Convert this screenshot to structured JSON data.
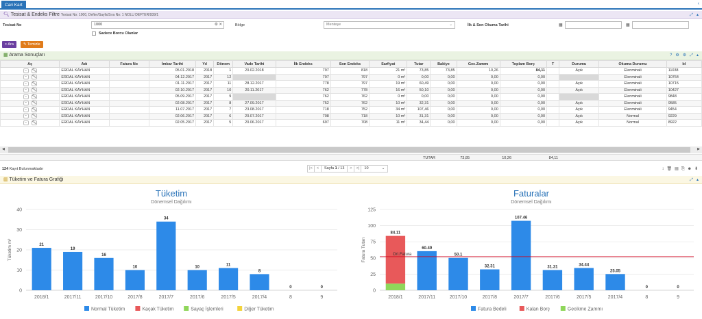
{
  "top_tab": "Cari Kart",
  "filter_panel": {
    "title": "Tesisat & Endeks Filtre",
    "subtitle": "Tesisat No: 1000, Defter/Sayfa/Sıra No: 1 NOLU DEFTER/939/1",
    "tesisat_label": "Tesisat No",
    "tesisat_value": "1000",
    "bolge_label": "Bölge",
    "bolge_value": "Menteşe",
    "okuma_label": "İlk & Son Okuma Tarihi",
    "borclu_label": "Sadece Borcu Olanlar",
    "ara_btn": "Ara",
    "temizle_btn": "Temizle"
  },
  "results_panel": {
    "title": "Arama Sonuçları",
    "columns": [
      "Aç",
      "Adı",
      "Fatura No",
      "İmbar Tarihi",
      "Yıl",
      "Dönem",
      "Vade Tarihi",
      "İlk Endeks",
      "Son Endeks",
      "Sarfiyat",
      "Tutar",
      "Bakiye",
      "Gec.Zammı",
      "Toplam Borç",
      "T",
      "Durumu",
      "Okuma Durumu",
      "Id"
    ],
    "rows": [
      {
        "name": "ERDAL KAYHAN",
        "fatura": "",
        "tarih": "05.01.2018",
        "yil": "2018",
        "donem": "1",
        "vade": "20.02.2018",
        "ilk": "797",
        "son": "818",
        "sarfiyat": "21 m³",
        "tutar": "73,85",
        "bakiye": "73,85",
        "gec": "10,26",
        "toplam": "84,11",
        "t": "",
        "durum": "Açık",
        "okuma": "Elenminali",
        "id": "11038"
      },
      {
        "name": "ERDAL KAYHAN",
        "fatura": "",
        "tarih": "04.12.2017",
        "yil": "2017",
        "donem": "12",
        "vade": "",
        "ilk": "797",
        "son": "797",
        "sarfiyat": "0 m³",
        "tutar": "0,00",
        "bakiye": "0,00",
        "gec": "0,00",
        "toplam": "0,00",
        "t": "",
        "durum": "",
        "okuma": "Elenminali",
        "id": "10764"
      },
      {
        "name": "ERDAL KAYHAN",
        "fatura": "",
        "tarih": "01.11.2017",
        "yil": "2017",
        "donem": "11",
        "vade": "28.12.2017",
        "ilk": "778",
        "son": "797",
        "sarfiyat": "19 m³",
        "tutar": "60,49",
        "bakiye": "0,00",
        "gec": "0,00",
        "toplam": "0,00",
        "t": "",
        "durum": "Açık",
        "okuma": "Elenminali",
        "id": "10715"
      },
      {
        "name": "ERDAL KAYHAN",
        "fatura": "",
        "tarih": "02.10.2017",
        "yil": "2017",
        "donem": "10",
        "vade": "20.11.2017",
        "ilk": "762",
        "son": "778",
        "sarfiyat": "16 m³",
        "tutar": "50,10",
        "bakiye": "0,00",
        "gec": "0,00",
        "toplam": "0,00",
        "t": "",
        "durum": "Açık",
        "okuma": "Elenminali",
        "id": "10427"
      },
      {
        "name": "ERDAL KAYHAN",
        "fatura": "",
        "tarih": "05.09.2017",
        "yil": "2017",
        "donem": "9",
        "vade": "",
        "ilk": "762",
        "son": "762",
        "sarfiyat": "0 m³",
        "tutar": "0,00",
        "bakiye": "0,00",
        "gec": "0,00",
        "toplam": "0,00",
        "t": "",
        "durum": "",
        "okuma": "Elenminali",
        "id": "9848"
      },
      {
        "name": "ERDAL KAYHAN",
        "fatura": "",
        "tarih": "02.08.2017",
        "yil": "2017",
        "donem": "8",
        "vade": "27.09.2017",
        "ilk": "752",
        "son": "762",
        "sarfiyat": "10 m³",
        "tutar": "32,31",
        "bakiye": "0,00",
        "gec": "0,00",
        "toplam": "0,00",
        "t": "",
        "durum": "Açık",
        "okuma": "Elenminali",
        "id": "9585"
      },
      {
        "name": "ERDAL KAYHAN",
        "fatura": "",
        "tarih": "11.07.2017",
        "yil": "2017",
        "donem": "7",
        "vade": "23.08.2017",
        "ilk": "718",
        "son": "752",
        "sarfiyat": "34 m³",
        "tutar": "107,46",
        "bakiye": "0,00",
        "gec": "0,00",
        "toplam": "0,00",
        "t": "",
        "durum": "Açık",
        "okuma": "Elenminali",
        "id": "9454"
      },
      {
        "name": "ERDAL KAYHAN",
        "fatura": "",
        "tarih": "02.06.2017",
        "yil": "2017",
        "donem": "6",
        "vade": "20.07.2017",
        "ilk": "708",
        "son": "718",
        "sarfiyat": "10 m³",
        "tutar": "31,31",
        "bakiye": "0,00",
        "gec": "0,00",
        "toplam": "0,00",
        "t": "",
        "durum": "Açık",
        "okuma": "Normal",
        "id": "9229"
      },
      {
        "name": "ERDAL KAYHAN",
        "fatura": "",
        "tarih": "02.05.2017",
        "yil": "2017",
        "donem": "5",
        "vade": "20.06.2017",
        "ilk": "697",
        "son": "708",
        "sarfiyat": "11 m³",
        "tutar": "34,44",
        "bakiye": "0,00",
        "gec": "0,00",
        "toplam": "0,00",
        "t": "",
        "durum": "Açık",
        "okuma": "Normal",
        "id": "8922"
      }
    ],
    "totals": {
      "label": "TUTAR",
      "bakiye": "73,85",
      "gec": "10,26",
      "toplam": "84,11"
    },
    "record_count": "124",
    "record_text": "Kayıt Bulunmaktadır",
    "page_label": "Sayfa",
    "page_current": "1",
    "page_total": "/ 13",
    "page_size": "10"
  },
  "chart_panel": {
    "title": "Tüketim ve Fatura Grafiği"
  },
  "chart_data": [
    {
      "type": "bar",
      "title": "Tüketim",
      "subtitle": "Dönemsel Dağılımı",
      "ylabel": "Tüketim m³",
      "ylim": [
        0,
        40
      ],
      "yticks": [
        0,
        10,
        20,
        30,
        40
      ],
      "categories": [
        "2018/1",
        "2017/11",
        "2017/10",
        "2017/8",
        "2017/7",
        "2017/6",
        "2017/5",
        "2017/4",
        "8",
        "9"
      ],
      "series": [
        {
          "name": "Normal Tüketim",
          "color": "#2d8ae8",
          "values": [
            21,
            19,
            16,
            10,
            34,
            10,
            11,
            8,
            0,
            0
          ]
        }
      ],
      "legend": [
        {
          "name": "Normal Tüketim",
          "color": "#2d8ae8"
        },
        {
          "name": "Kaçak Tüketim",
          "color": "#e8595a"
        },
        {
          "name": "Sayaç İşlemleri",
          "color": "#8fd65a"
        },
        {
          "name": "Diğer Tüketim",
          "color": "#f3d33c"
        }
      ],
      "legend_position": "bottom"
    },
    {
      "type": "bar",
      "title": "Faturalar",
      "subtitle": "Dönemsel Dağılımı",
      "ylabel": "Fatura Tutarı",
      "ylim": [
        0,
        125
      ],
      "yticks": [
        0,
        25,
        50,
        75,
        100,
        125
      ],
      "categories": [
        "2018/1",
        "2017/11",
        "2017/10",
        "2017/8",
        "2017/7",
        "2017/6",
        "2017/5",
        "2017/4",
        "8",
        "9"
      ],
      "series": [
        {
          "name": "Fatura Bedeli",
          "color": "#2d8ae8",
          "values": [
            0,
            60.49,
            50.1,
            32.31,
            107.46,
            31.31,
            34.44,
            25.05,
            0,
            0
          ]
        },
        {
          "name": "Kalan Borç",
          "color": "#e8595a",
          "values": [
            73.85,
            0,
            0,
            0,
            0,
            0,
            0,
            0,
            0,
            0
          ]
        },
        {
          "name": "Gecikme Zammı",
          "color": "#8fd65a",
          "values": [
            10.26,
            0,
            0,
            0,
            0,
            0,
            0,
            0,
            0,
            0
          ]
        }
      ],
      "labels": [
        "84.11",
        "60.49",
        "50.1",
        "32.31",
        "107.46",
        "31.31",
        "34.44",
        "25.05",
        "0",
        "0"
      ],
      "reference_line": {
        "label": "Ort.Fatura",
        "value": 52,
        "color": "#d0021b"
      },
      "legend_position": "bottom"
    }
  ]
}
